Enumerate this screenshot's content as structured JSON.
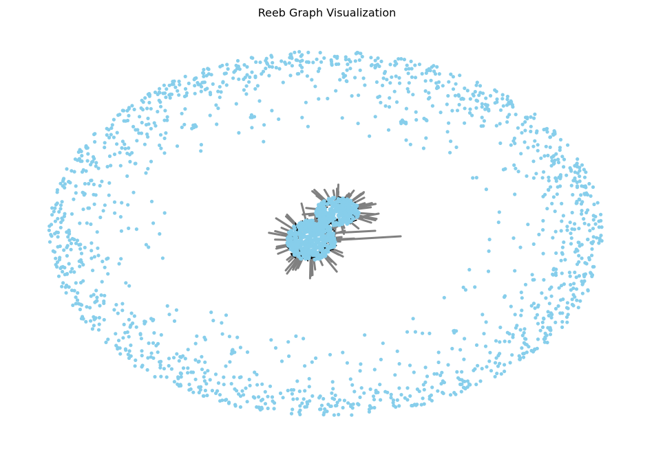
{
  "figure": {
    "title": "Reeb Graph Visualization"
  },
  "style": {
    "node_color": "#87CEEB",
    "edge_color": "#808080",
    "cluster_edge_color": "#000000",
    "background": "#ffffff"
  },
  "graph": {
    "layout": "spring",
    "outer_ring": "isolated nodes arranged in an elliptical ring",
    "center_cluster": "dense connected component with dark edges and gray spokes"
  }
}
